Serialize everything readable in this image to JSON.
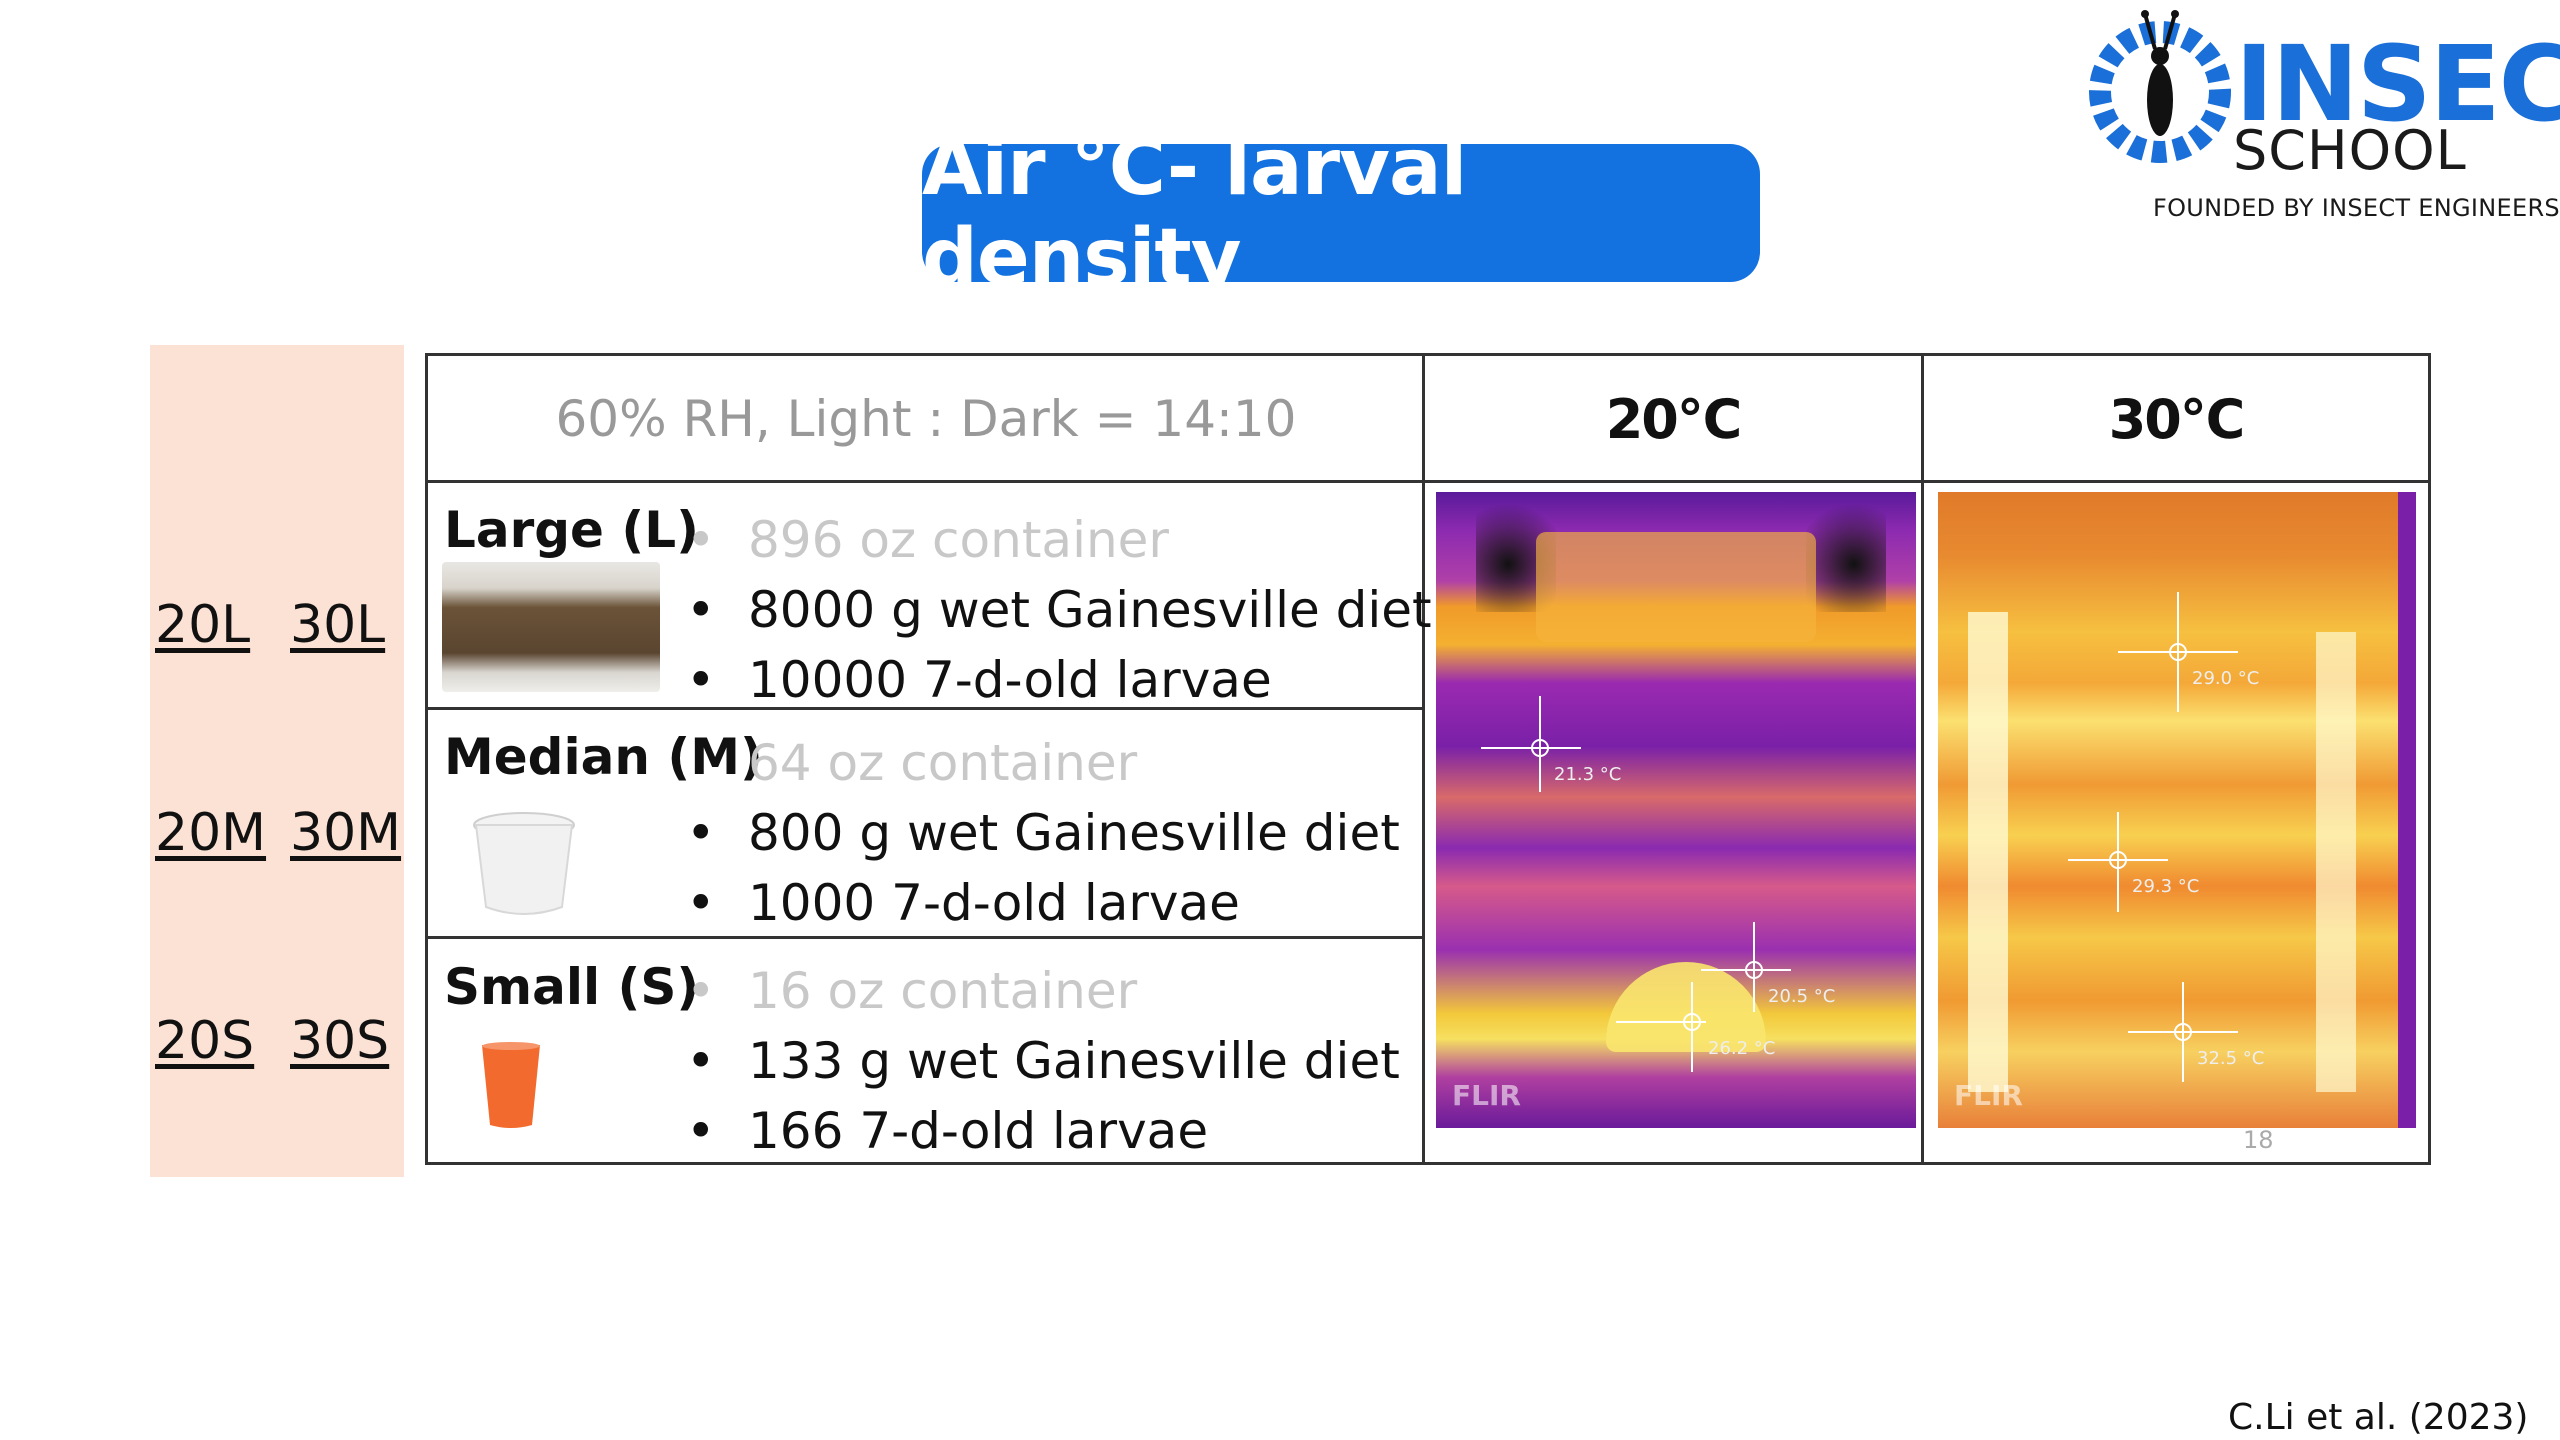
{
  "logo": {
    "name": "INSECT",
    "sub": "SCHOOL",
    "tagline": "FOUNDED BY INSECT ENGINEERS",
    "color": "#1a6fd8"
  },
  "title": "Air °C- larval density",
  "codes": {
    "large": [
      "20L",
      "30L"
    ],
    "median": [
      "20M",
      "30M"
    ],
    "small": [
      "20S",
      "30S"
    ]
  },
  "table": {
    "condition": "60% RH, Light : Dark = 14:10",
    "temp_20": "20℃",
    "temp_30": "30℃",
    "rows": [
      {
        "label": "Large (L)",
        "container": "896 oz container",
        "diet": "8000 g wet Gainesville diet",
        "larvae": "10000 7-d-old larvae"
      },
      {
        "label": "Median (M)",
        "container": "64 oz container",
        "diet": "800 g wet Gainesville diet",
        "larvae": "1000 7-d-old larvae"
      },
      {
        "label": "Small (S)",
        "container": "16 oz container",
        "diet": "133 g wet Gainesville diet",
        "larvae": "166 7-d-old larvae"
      }
    ],
    "bullet": "•",
    "thermal_20": {
      "readings": [
        "21.3 °C",
        "20.5 °C",
        "26.2 °C"
      ],
      "brand": "FLIR"
    },
    "thermal_30": {
      "readings": [
        "29.0 °C",
        "29.3 °C",
        "32.5 °C"
      ],
      "brand": "FLIR"
    },
    "page_number": "18"
  },
  "citation": "C.Li et al. (2023)"
}
